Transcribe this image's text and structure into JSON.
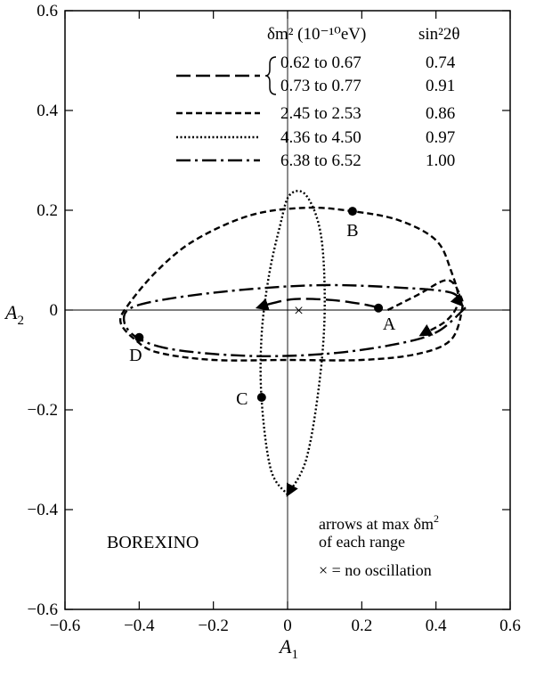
{
  "chart_data": {
    "type": "line",
    "title": "BOREXINO",
    "xlabel": "A",
    "xlabel_sub": "1",
    "ylabel": "A",
    "ylabel_sub": "2",
    "xlim": [
      -0.6,
      0.6
    ],
    "ylim": [
      -0.6,
      0.6
    ],
    "xticks": [
      -0.6,
      -0.4,
      -0.2,
      0,
      0.2,
      0.4,
      0.6
    ],
    "xtick_labels": [
      "−0.6",
      "−0.4",
      "−0.2",
      "0",
      "0.2",
      "0.4",
      "0.6"
    ],
    "yticks": [
      -0.6,
      -0.4,
      -0.2,
      0,
      0.2,
      0.4,
      0.6
    ],
    "ytick_labels": [
      "−0.6",
      "−0.4",
      "−0.2",
      "0",
      "0.2",
      "0.4",
      "0.6"
    ],
    "grid": false,
    "legend": {
      "placement": "top",
      "col1_header": "δm² (10⁻¹⁰eV)",
      "col2_header": "sin²2θ",
      "rows": [
        {
          "range": "0.62 to 0.67",
          "sin2": "0.74",
          "style": "long-dash"
        },
        {
          "range": "0.73 to 0.77",
          "sin2": "0.91",
          "style": "long-dash"
        },
        {
          "range": "2.45 to 2.53",
          "sin2": "0.86",
          "style": "short-dash"
        },
        {
          "range": "4.36 to 4.50",
          "sin2": "0.97",
          "style": "dotted"
        },
        {
          "range": "6.38 to 6.52",
          "sin2": "1.00",
          "style": "dash-dot"
        }
      ]
    },
    "series": [
      {
        "style": "long-dash",
        "points": [
          [
            0.245,
            0.005
          ],
          [
            0.2,
            0.012
          ],
          [
            0.12,
            0.02
          ],
          [
            0.02,
            0.022
          ],
          [
            -0.05,
            0.012
          ],
          [
            -0.08,
            0.005
          ]
        ]
      },
      {
        "style": "short-dash",
        "points": [
          [
            0.27,
            0.0
          ],
          [
            0.35,
            0.03
          ],
          [
            0.43,
            0.06
          ],
          [
            0.465,
            0.03
          ],
          [
            0.47,
            0.0
          ],
          [
            0.44,
            -0.06
          ],
          [
            0.35,
            -0.088
          ],
          [
            0.2,
            -0.1
          ],
          [
            0.0,
            -0.1
          ],
          [
            -0.2,
            -0.1
          ],
          [
            -0.35,
            -0.085
          ],
          [
            -0.41,
            -0.06
          ],
          [
            -0.45,
            -0.025
          ],
          [
            -0.43,
            0.01
          ],
          [
            -0.35,
            0.08
          ],
          [
            -0.25,
            0.14
          ],
          [
            -0.1,
            0.19
          ],
          [
            0.05,
            0.205
          ],
          [
            0.175,
            0.198
          ],
          [
            0.3,
            0.18
          ],
          [
            0.4,
            0.14
          ],
          [
            0.44,
            0.08
          ],
          [
            0.46,
            0.02
          ],
          [
            0.43,
            -0.02
          ],
          [
            0.36,
            -0.05
          ]
        ]
      },
      {
        "style": "dotted",
        "points": [
          [
            0.0,
            -0.37
          ],
          [
            -0.045,
            -0.32
          ],
          [
            -0.07,
            -0.18
          ],
          [
            -0.07,
            -0.05
          ],
          [
            -0.05,
            0.07
          ],
          [
            -0.02,
            0.17
          ],
          [
            0.005,
            0.23
          ],
          [
            0.05,
            0.23
          ],
          [
            0.09,
            0.15
          ],
          [
            0.1,
            0.0
          ],
          [
            0.085,
            -0.15
          ],
          [
            0.05,
            -0.3
          ],
          [
            0.0,
            -0.37
          ]
        ]
      },
      {
        "style": "dash-dot",
        "points": [
          [
            0.48,
            0.005
          ],
          [
            0.4,
            -0.045
          ],
          [
            0.28,
            -0.07
          ],
          [
            0.1,
            -0.088
          ],
          [
            -0.1,
            -0.092
          ],
          [
            -0.3,
            -0.08
          ],
          [
            -0.4,
            -0.058
          ],
          [
            -0.44,
            -0.025
          ],
          [
            -0.42,
            0.005
          ],
          [
            -0.3,
            0.025
          ],
          [
            -0.1,
            0.042
          ],
          [
            0.1,
            0.05
          ],
          [
            0.3,
            0.045
          ],
          [
            0.44,
            0.035
          ],
          [
            0.47,
            0.01
          ]
        ]
      }
    ],
    "points": [
      {
        "label": "A",
        "x": 0.245,
        "y": 0.004
      },
      {
        "label": "B",
        "x": 0.175,
        "y": 0.198
      },
      {
        "label": "C",
        "x": -0.07,
        "y": -0.175
      },
      {
        "label": "D",
        "x": -0.4,
        "y": -0.055
      }
    ],
    "no_oscillation": {
      "x": 0.03,
      "y": 0.0,
      "symbol": "×"
    },
    "annotations": {
      "arrows_line1": "arrows at max δm",
      "arrows_line1_sup": "2",
      "arrows_line2": "of each range",
      "no_osc": "× = no oscillation"
    }
  }
}
